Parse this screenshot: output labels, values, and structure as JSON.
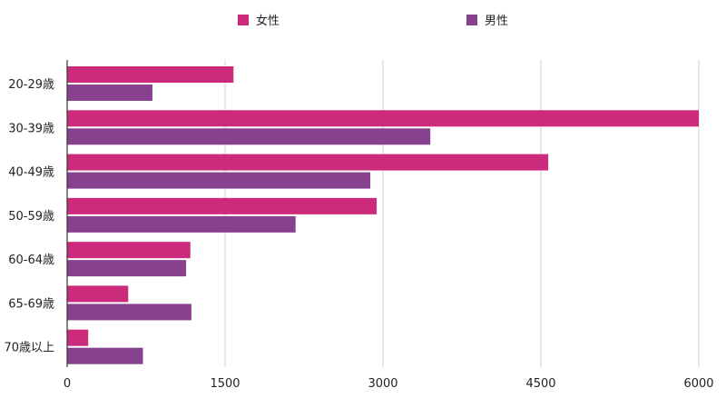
{
  "chart_data": {
    "type": "bar",
    "orientation": "horizontal",
    "categories": [
      "20-29歳",
      "30-39歳",
      "40-49歳",
      "50-59歳",
      "60-64歳",
      "65-69歳",
      "70歳以上"
    ],
    "series": [
      {
        "name": "女性",
        "color": "#cc2b7b",
        "values": [
          1580,
          6000,
          4570,
          2940,
          1170,
          580,
          200
        ]
      },
      {
        "name": "男性",
        "color": "#87418f",
        "values": [
          810,
          3450,
          2880,
          2170,
          1130,
          1180,
          720
        ]
      }
    ],
    "xlim": [
      0,
      6000
    ],
    "xticks": [
      0,
      1500,
      3000,
      4500,
      6000
    ],
    "grid": true,
    "legend": "top"
  }
}
